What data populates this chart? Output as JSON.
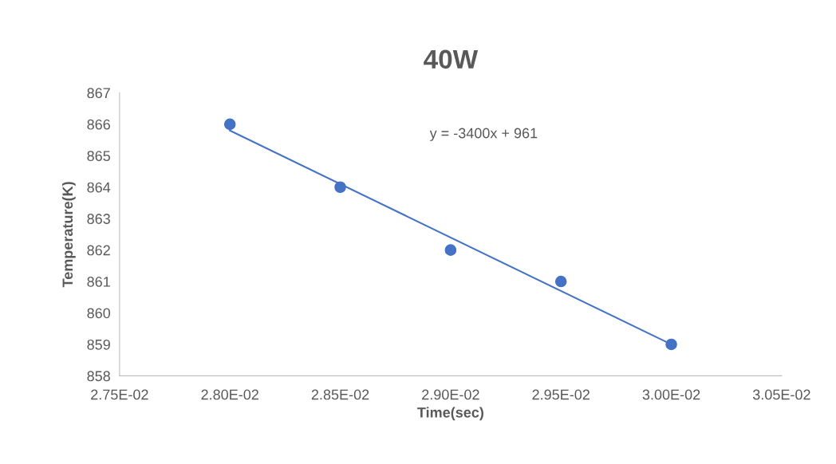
{
  "chart_data": {
    "type": "scatter",
    "title": "40W",
    "xlabel": "Time(sec)",
    "ylabel": "Temperature(K)",
    "x": [
      0.028,
      0.0285,
      0.029,
      0.0295,
      0.03
    ],
    "series": [
      {
        "color": "#4472c4",
        "values": [
          866,
          864,
          862,
          861,
          859
        ],
        "marker": "circle"
      },
      {
        "type": "line",
        "color": "#4472c4",
        "x": [
          0.028,
          0.03
        ],
        "values": [
          865.8,
          859.0
        ],
        "marker": "none",
        "line_style": "solid"
      }
    ],
    "annotations": [
      "y = -3400x + 961"
    ],
    "xlim": [
      0.0275,
      0.0305
    ],
    "xticks": [
      {
        "value": 0.0275,
        "label": "2.75E-02"
      },
      {
        "value": 0.028,
        "label": "2.80E-02"
      },
      {
        "value": 0.0285,
        "label": "2.85E-02"
      },
      {
        "value": 0.029,
        "label": "2.90E-02"
      },
      {
        "value": 0.0295,
        "label": "2.95E-02"
      },
      {
        "value": 0.03,
        "label": "3.00E-02"
      },
      {
        "value": 0.0305,
        "label": "3.05E-02"
      }
    ],
    "ylim": [
      858,
      867
    ],
    "yticks": [
      858,
      859,
      860,
      861,
      862,
      863,
      864,
      865,
      866,
      867
    ],
    "grid": false,
    "legend": false
  }
}
